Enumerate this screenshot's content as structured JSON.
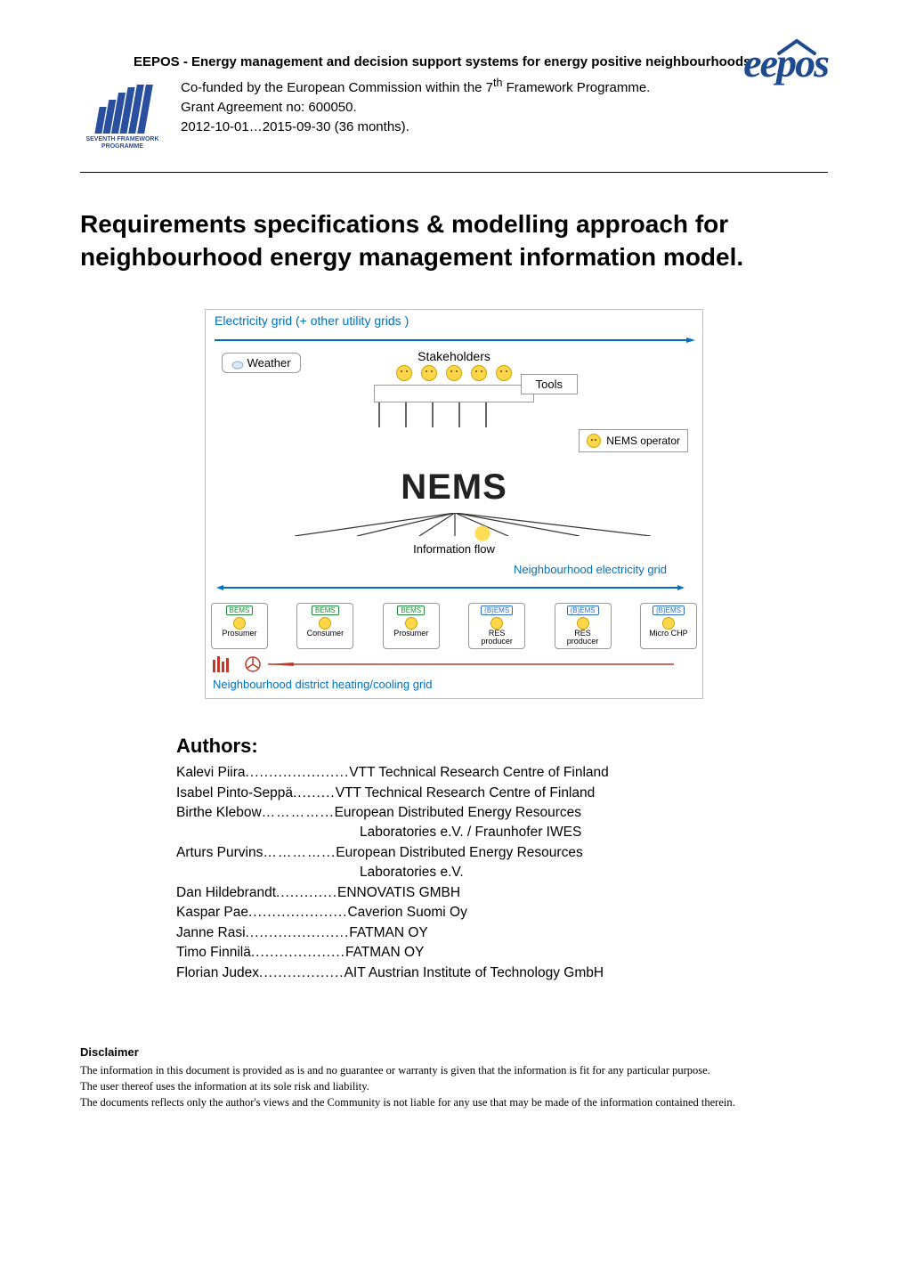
{
  "header": {
    "project_title": "EEPOS - Energy management and decision support systems for energy positive neighbourhoods",
    "funding_line1": "Co-funded by the European Commission within the 7",
    "funding_super": "th",
    "funding_line1b": " Framework Programme.",
    "funding_line2": "Grant Agreement no: 600050.",
    "funding_line3": "2012-10-01…2015-09-30 (36 months).",
    "fp7_label": "SEVENTH FRAMEWORK PROGRAMME",
    "eepos_logo_text": "eepos"
  },
  "main_title": "Requirements specifications & modelling approach for neighbourhood energy management information model.",
  "diagram": {
    "top_grid_label": "Electricity grid (+ other utility grids )",
    "stakeholders_label": "Stakeholders",
    "weather_label": "Weather",
    "tools_label": "Tools",
    "nems_logo": "NEMS",
    "nems_operator_label": "NEMS operator",
    "info_flow_label": "Information flow",
    "neigh_elec_label": "Neighbourhood electricity grid",
    "heating_label": "Neighbourhood district heating/cooling grid",
    "nodes": [
      {
        "tag": "BEMS",
        "tag_color": "green",
        "label": "Prosumer"
      },
      {
        "tag": "BEMS",
        "tag_color": "green",
        "label": "Consumer"
      },
      {
        "tag": "BEMS",
        "tag_color": "green",
        "label": "Prosumer"
      },
      {
        "tag": "(B)EMS",
        "tag_color": "blue",
        "label": "RES producer"
      },
      {
        "tag": "(B)EMS",
        "tag_color": "blue",
        "label": "RES producer"
      },
      {
        "tag": "(B)EMS",
        "tag_color": "blue",
        "label": "Micro CHP"
      }
    ],
    "colors": {
      "blue_text": "#0070c0",
      "border_gray": "#bfbfbf",
      "smiley_fill": "#ffd54a",
      "smiley_border": "#c9a500",
      "bems_green": "#1e8a3b",
      "bems_blue": "#2a6fc9",
      "heat_red": "#c0392b",
      "fp7_blue": "#2a4f9e",
      "eepos_blue": "#1e4b8f"
    }
  },
  "authors_heading": "Authors:",
  "authors": [
    {
      "name": "Kalevi Piira",
      "dots": "......................",
      "aff": "VTT Technical Research Centre of Finland"
    },
    {
      "name": "Isabel Pinto-Seppä",
      "dots": " .........",
      "aff": "VTT Technical Research Centre of Finland"
    },
    {
      "name": "Birthe Klebow",
      "dots": "…………...",
      "aff": " European Distributed Energy Resources",
      "cont": "Laboratories e.V. / Fraunhofer IWES"
    },
    {
      "name": "Arturs Purvins",
      "dots": "…………...",
      "aff": "European Distributed Energy Resources",
      "cont": "Laboratories e.V."
    },
    {
      "name": "Dan Hildebrandt",
      "dots": ".............",
      "aff": "ENNOVATIS GMBH"
    },
    {
      "name": "Kaspar Pae",
      "dots": ".....................",
      "aff": "Caverion Suomi Oy"
    },
    {
      "name": "Janne Rasi",
      "dots": "......................",
      "aff": "FATMAN OY"
    },
    {
      "name": "Timo Finnilä",
      "dots": " ....................",
      "aff": "FATMAN OY"
    },
    {
      "name": "Florian Judex",
      "dots": " ..................",
      "aff": "AIT Austrian Institute of Technology GmbH"
    }
  ],
  "disclaimer": {
    "heading": "Disclaimer",
    "line1": "The information in this document is provided as is and no guarantee or warranty is given that the information is fit for any particular purpose.",
    "line2": "The user thereof uses the information at its sole risk and liability.",
    "line3": "The documents reflects only the author's views and the Community is not liable for any use that may be made of the information contained therein."
  }
}
